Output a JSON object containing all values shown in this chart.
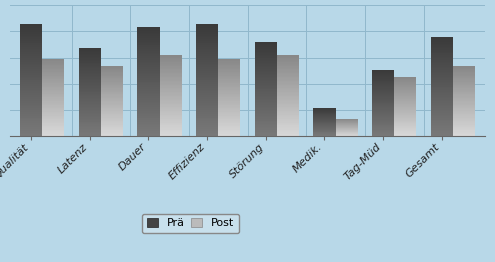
{
  "categories": [
    "Qualität",
    "Latenz",
    "Dauer",
    "Effizienz",
    "Störung",
    "Medik.",
    "Tag-Müd",
    "Gesamt"
  ],
  "pre_values": [
    2.05,
    1.62,
    2.0,
    2.05,
    1.72,
    0.52,
    1.22,
    1.82
  ],
  "post_values": [
    1.42,
    1.28,
    1.48,
    1.42,
    1.48,
    0.32,
    1.08,
    1.28
  ],
  "pre_color_dark": "#3a3a3a",
  "pre_color_light": "#787878",
  "post_color_dark": "#888888",
  "post_color_light": "#d8d8d8",
  "background_color": "#b8d8e8",
  "grid_color": "#90b8cc",
  "bar_width": 0.38,
  "ylim": [
    0,
    2.4
  ],
  "legend_labels": [
    "Prä",
    "Post"
  ],
  "label_fontsize": 8.0
}
